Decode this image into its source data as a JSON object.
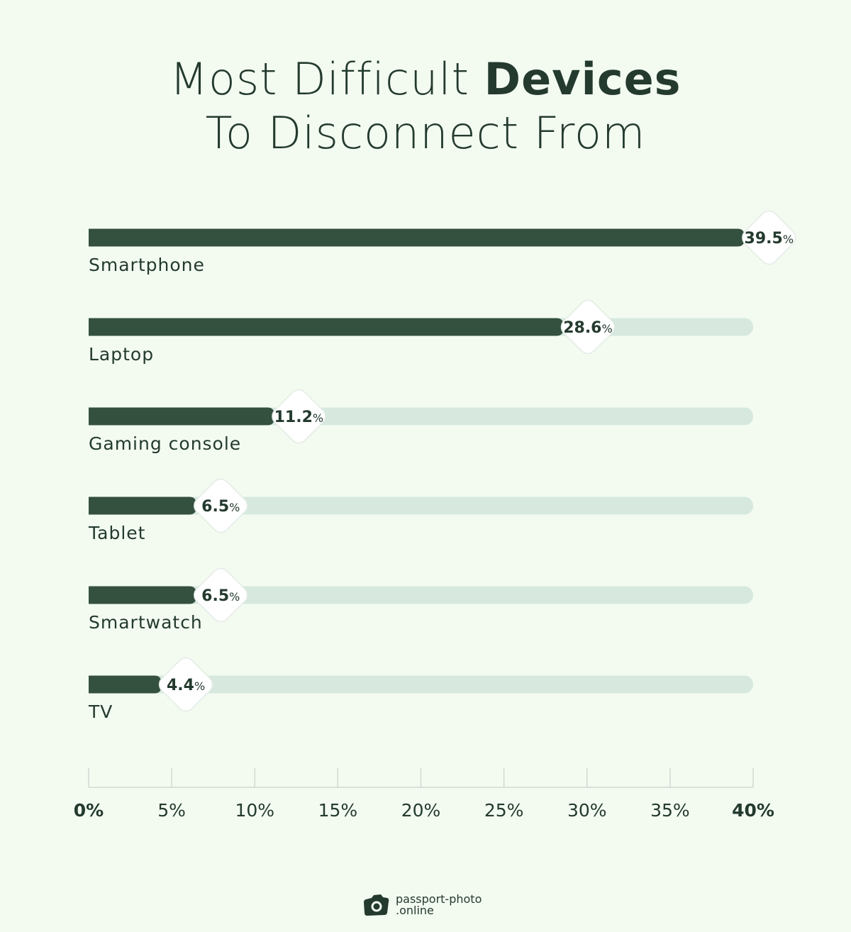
{
  "chart_data": {
    "type": "bar",
    "orientation": "horizontal",
    "title_regular_1": "Most Difficult",
    "title_bold": "Devices",
    "title_line_2": "To Disconnect From",
    "categories": [
      "Smartphone",
      "Laptop",
      "Gaming console",
      "Tablet",
      "Smartwatch",
      "TV"
    ],
    "values": [
      39.5,
      28.6,
      11.2,
      6.5,
      6.5,
      4.4
    ],
    "data_labels": [
      "39.5",
      "28.6",
      "11.2",
      "6.5",
      "6.5",
      "4.4"
    ],
    "unit": "%",
    "xlim": [
      0,
      40
    ],
    "xticks": [
      0,
      5,
      10,
      15,
      20,
      25,
      30,
      35,
      40
    ],
    "xtick_labels": [
      "0%",
      "5%",
      "10%",
      "15%",
      "20%",
      "25%",
      "30%",
      "35%",
      "40%"
    ],
    "grid": false,
    "colors": {
      "bar": "#34503f",
      "track": "#d7e9df",
      "text": "#243a2e",
      "background": "#f3fbf1"
    }
  },
  "brand": {
    "line1": "passport-photo",
    "line2": ".online",
    "icon": "camera-icon"
  }
}
